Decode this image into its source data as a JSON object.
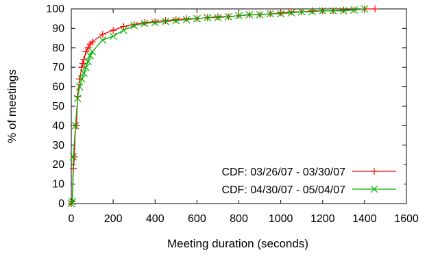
{
  "chart_data": {
    "type": "line",
    "title": "",
    "xlabel": "Meeting duration (seconds)",
    "ylabel": "% of meetings",
    "xlim": [
      0,
      1600
    ],
    "ylim": [
      0,
      100
    ],
    "xticks": [
      0,
      200,
      400,
      600,
      800,
      1000,
      1200,
      1400,
      1600
    ],
    "yticks": [
      0,
      10,
      20,
      30,
      40,
      50,
      60,
      70,
      80,
      90,
      100
    ],
    "grid": false,
    "legend_position": "bottom-right",
    "series": [
      {
        "name": "CDF: 03/26/07 - 03/30/07",
        "color": "#ff0000",
        "marker": "plus",
        "x": [
          0,
          3,
          5,
          10,
          15,
          20,
          25,
          30,
          40,
          50,
          55,
          60,
          70,
          80,
          90,
          100,
          150,
          200,
          250,
          300,
          350,
          400,
          450,
          500,
          550,
          600,
          650,
          700,
          750,
          800,
          850,
          900,
          950,
          1000,
          1050,
          1100,
          1150,
          1200,
          1250,
          1300,
          1350,
          1400,
          1450
        ],
        "y": [
          0,
          1,
          1,
          18,
          24,
          40,
          40,
          55,
          64,
          70,
          72,
          74,
          78,
          80,
          82,
          83,
          87,
          89,
          91,
          92,
          93,
          93.5,
          94,
          94.5,
          95,
          95,
          95.5,
          96,
          96,
          96.5,
          97,
          97,
          97.5,
          98,
          98.5,
          98.5,
          99,
          99,
          99,
          99.5,
          99.5,
          100,
          100
        ]
      },
      {
        "name": "CDF: 04/30/07 - 05/04/07",
        "color": "#00b000",
        "marker": "cross",
        "x": [
          0,
          5,
          10,
          20,
          30,
          40,
          50,
          60,
          70,
          80,
          90,
          100,
          150,
          200,
          250,
          300,
          350,
          400,
          450,
          500,
          550,
          600,
          650,
          700,
          750,
          800,
          850,
          900,
          950,
          1000,
          1050,
          1100,
          1150,
          1200,
          1250,
          1300,
          1350,
          1400
        ],
        "y": [
          0,
          1,
          24,
          40,
          54,
          60,
          64,
          67,
          70,
          73,
          76,
          78,
          84,
          86,
          89,
          91.5,
          92.5,
          93,
          93.5,
          94,
          94.5,
          95,
          95.5,
          95.5,
          96,
          96.5,
          97,
          97,
          97.5,
          97.5,
          98,
          98.5,
          98.5,
          99,
          99,
          99,
          99.5,
          100
        ]
      }
    ]
  }
}
